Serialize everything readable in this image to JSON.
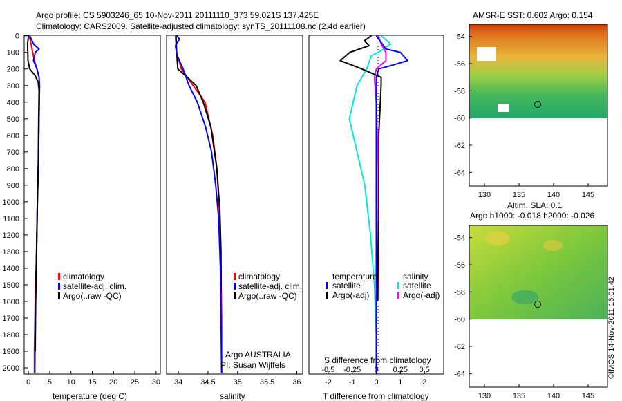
{
  "header": {
    "line1": "Argo profile: CS 5903246_65 10-Nov-2011 20111110_373 59.021S 137.425E",
    "line2": "Climatology: CARS2009. Satellite-adjusted climatology: synTS_20111108.nc (2.4d earlier)"
  },
  "colors": {
    "climatology": "#ff0000",
    "satellite_adj": "#0000ff",
    "argo": "#000000",
    "salinity_satellite": "#00e5e5",
    "salinity_argo": "#ff00ff"
  },
  "depth_axis": {
    "ticks": [
      "0",
      "100",
      "200",
      "300",
      "400",
      "500",
      "600",
      "700",
      "800",
      "900",
      "1000",
      "1100",
      "1200",
      "1300",
      "1400",
      "1500",
      "1600",
      "1700",
      "1800",
      "1900",
      "2000"
    ]
  },
  "temperature_panel": {
    "xlabel": "temperature (deg C)",
    "xticks": [
      "0",
      "5",
      "10",
      "15",
      "20",
      "25",
      "30"
    ],
    "legend": [
      "climatology",
      "satellite-adj. clim.",
      "Argo(..raw -QC)"
    ]
  },
  "salinity_panel": {
    "xlabel": "salinity",
    "xticks": [
      "34",
      "34.5",
      "35",
      "35.5",
      "36"
    ],
    "legend": [
      "climatology",
      "satellite-adj. clim.",
      "Argo(..raw -QC)"
    ],
    "note1": "Argo AUSTRALIA",
    "note2": "PI: Susan Wijffels"
  },
  "difference_panel": {
    "xlabel": "T difference from climatology",
    "top_label": "S difference from climatology",
    "xticks_t": [
      "-2",
      "-1",
      "0",
      "1",
      "2"
    ],
    "xticks_s": [
      "-0.5",
      "-0.25",
      "0",
      "0.25",
      "0.5"
    ],
    "legend_temperature_title": "temperature",
    "legend_salinity_title": "salinity",
    "legend_temperature": [
      "satellite",
      "Argo(-adj)"
    ],
    "legend_salinity": [
      "satellite",
      "Argo(-adj)"
    ]
  },
  "sst_map": {
    "title": "AMSR-E SST: 0.602  Argo: 0.154",
    "xticks": [
      "130",
      "135",
      "140",
      "145"
    ],
    "yticks": [
      "-54",
      "-56",
      "-58",
      "-60",
      "-62",
      "-64"
    ]
  },
  "sla_map": {
    "title1": "Altim. SLA: 0.1",
    "title2": "Argo h1000: -0.018 h2000: -0.026",
    "xticks": [
      "130",
      "135",
      "140",
      "145"
    ],
    "yticks": [
      "-54",
      "-56",
      "-58",
      "-60",
      "-62",
      "-64"
    ]
  },
  "credit": "©IMOS 14-Nov-2011 16:01:42",
  "chart_data": [
    {
      "type": "line",
      "panel": "temperature",
      "xlabel": "temperature (deg C)",
      "ylabel": "",
      "xlim": [
        -1,
        31
      ],
      "ylim": [
        2050,
        0
      ],
      "series": [
        {
          "name": "climatology",
          "x": [
            0.2,
            0.6,
            1.0,
            1.4,
            2.0,
            2.5,
            2.6,
            2.5,
            2.3,
            2.1,
            1.9,
            1.6,
            1.4,
            1.4
          ],
          "y": [
            0,
            50,
            100,
            150,
            200,
            250,
            300,
            500,
            800,
            1000,
            1300,
            1600,
            1900,
            2030
          ]
        },
        {
          "name": "satellite-adj. clim.",
          "x": [
            0.3,
            1.2,
            2.5,
            1.6,
            1.2,
            2.0,
            2.5,
            2.6,
            2.5,
            2.3,
            2.1,
            1.9,
            1.6,
            1.5
          ],
          "y": [
            0,
            50,
            80,
            100,
            150,
            200,
            250,
            300,
            500,
            800,
            1000,
            1300,
            1700,
            2030
          ]
        },
        {
          "name": "Argo(..raw -QC)",
          "x": [
            0.0,
            -0.2,
            -0.1,
            0.3,
            1.6,
            2.3,
            2.5,
            2.4,
            2.3,
            2.1,
            1.9,
            1.7,
            1.6
          ],
          "y": [
            0,
            50,
            150,
            200,
            240,
            280,
            330,
            500,
            800,
            1000,
            1300,
            1600,
            1900
          ]
        }
      ]
    },
    {
      "type": "line",
      "panel": "salinity",
      "xlabel": "salinity",
      "ylabel": "",
      "xlim": [
        33.8,
        36.1
      ],
      "ylim": [
        2050,
        0
      ],
      "series": [
        {
          "name": "climatology",
          "x": [
            33.95,
            33.97,
            34.05,
            34.25,
            34.45,
            34.58,
            34.65,
            34.7,
            34.72,
            34.73,
            34.73
          ],
          "y": [
            0,
            100,
            200,
            300,
            400,
            600,
            800,
            1100,
            1400,
            1700,
            2030
          ]
        },
        {
          "name": "satellite-adj. clim.",
          "x": [
            33.97,
            34.02,
            33.95,
            33.98,
            34.08,
            34.18,
            34.32,
            34.46,
            34.56,
            34.63,
            34.68,
            34.71,
            34.72,
            34.73
          ],
          "y": [
            0,
            20,
            60,
            120,
            200,
            300,
            400,
            550,
            700,
            900,
            1100,
            1400,
            1700,
            2030
          ]
        },
        {
          "name": "Argo(..raw -QC)",
          "x": [
            33.96,
            33.97,
            33.99,
            34.15,
            34.3,
            34.42,
            34.55,
            34.65,
            34.7,
            34.72,
            34.72
          ],
          "y": [
            0,
            100,
            200,
            250,
            300,
            400,
            550,
            800,
            1050,
            1300,
            1550
          ]
        }
      ]
    },
    {
      "type": "line",
      "panel": "difference",
      "xlabel": "T difference from climatology",
      "xlim_t": [
        -2.8,
        2.8
      ],
      "xlim_s": [
        -0.7,
        0.7
      ],
      "ylim": [
        2050,
        0
      ],
      "series": [
        {
          "name": "temperature satellite",
          "x": [
            0,
            0.4,
            1.0,
            1.3,
            0.6,
            0.1,
            0,
            0,
            0,
            0,
            0
          ],
          "y": [
            0,
            80,
            100,
            150,
            180,
            200,
            250,
            400,
            1000,
            1500,
            2030
          ]
        },
        {
          "name": "temperature Argo(-adj)",
          "x": [
            -0.2,
            -0.5,
            -0.3,
            -1.1,
            -1.5,
            -0.6,
            0.2,
            0.2,
            0.1,
            0.1,
            0.05
          ],
          "y": [
            0,
            30,
            60,
            100,
            150,
            200,
            250,
            300,
            600,
            1000,
            1600
          ]
        },
        {
          "name": "salinity satellite",
          "x": [
            0.05,
            0.15,
            0.05,
            -0.05,
            -0.1,
            -0.2,
            -0.28,
            -0.2,
            -0.12,
            -0.06,
            -0.02,
            0,
            0
          ],
          "y": [
            0,
            50,
            90,
            120,
            200,
            300,
            500,
            700,
            900,
            1200,
            1500,
            1800,
            2030
          ]
        },
        {
          "name": "salinity Argo(-adj)",
          "x": [
            0.02,
            0.05,
            0.1,
            0.1,
            0.0,
            -0.02,
            0.0,
            0.02,
            0.02,
            0.02
          ],
          "y": [
            0,
            50,
            100,
            150,
            200,
            250,
            400,
            800,
            1200,
            1600
          ]
        }
      ]
    }
  ]
}
